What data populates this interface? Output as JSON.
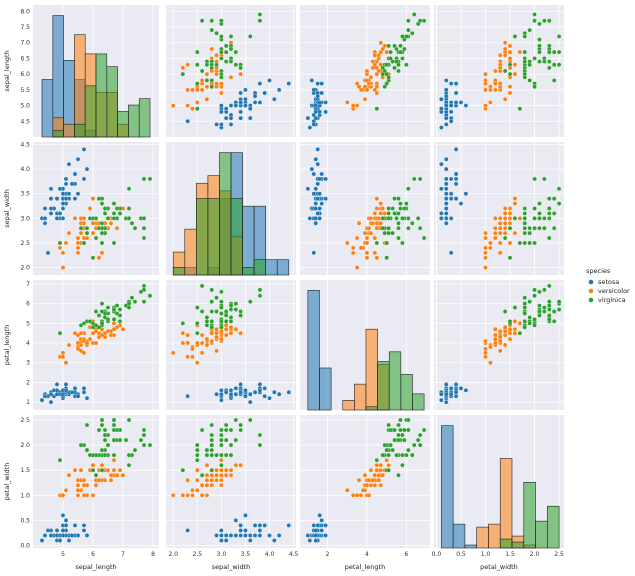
{
  "chart_data": {
    "type": "scatter",
    "kind": "pairplot",
    "variables": [
      "sepal_length",
      "sepal_width",
      "petal_length",
      "petal_width"
    ],
    "axis_labels": [
      "sepal_length",
      "sepal_width",
      "petal_length",
      "petal_width"
    ],
    "ticks": {
      "sepal_length": [
        "5",
        "6",
        "7",
        "8"
      ],
      "sepal_width": [
        "2.0",
        "2.5",
        "3.0",
        "3.5",
        "4.0",
        "4.5"
      ],
      "petal_length": [
        "2",
        "4",
        "6"
      ],
      "petal_width": [
        "0.0",
        "0.5",
        "1.0",
        "1.5",
        "2.0",
        "2.5"
      ],
      "sepal_length_y": [
        "4.5",
        "5.0",
        "5.5",
        "6.0",
        "6.5",
        "7.0",
        "7.5",
        "8.0"
      ],
      "petal_length_y": [
        "1",
        "2",
        "3",
        "4",
        "5",
        "6",
        "7"
      ]
    },
    "ranges": {
      "sepal_length": [
        4.0,
        8.2
      ],
      "sepal_width": [
        1.85,
        4.55
      ],
      "petal_length": [
        0.6,
        7.2
      ],
      "petal_width": [
        -0.05,
        2.6
      ]
    },
    "legend": {
      "title": "species",
      "placement": "center-right",
      "entries": [
        {
          "name": "setosa",
          "color": "#1f77b4"
        },
        {
          "name": "versicolor",
          "color": "#ff7f0e"
        },
        {
          "name": "virginica",
          "color": "#2ca02c"
        }
      ]
    },
    "style": {
      "background": "#eaeaf2",
      "grid": true,
      "grid_color": "#ffffff"
    },
    "series": [
      {
        "name": "setosa",
        "color": "#1f77b4",
        "points": [
          [
            5.1,
            3.5,
            1.4,
            0.2
          ],
          [
            4.9,
            3.0,
            1.4,
            0.2
          ],
          [
            4.7,
            3.2,
            1.3,
            0.2
          ],
          [
            4.6,
            3.1,
            1.5,
            0.2
          ],
          [
            5.0,
            3.6,
            1.4,
            0.2
          ],
          [
            5.4,
            3.9,
            1.7,
            0.4
          ],
          [
            4.6,
            3.4,
            1.4,
            0.3
          ],
          [
            5.0,
            3.4,
            1.5,
            0.2
          ],
          [
            4.4,
            2.9,
            1.4,
            0.2
          ],
          [
            4.9,
            3.1,
            1.5,
            0.1
          ],
          [
            5.4,
            3.7,
            1.5,
            0.2
          ],
          [
            4.8,
            3.4,
            1.6,
            0.2
          ],
          [
            4.8,
            3.0,
            1.4,
            0.1
          ],
          [
            4.3,
            3.0,
            1.1,
            0.1
          ],
          [
            5.8,
            4.0,
            1.2,
            0.2
          ],
          [
            5.7,
            4.4,
            1.5,
            0.4
          ],
          [
            5.4,
            3.9,
            1.3,
            0.4
          ],
          [
            5.1,
            3.5,
            1.4,
            0.3
          ],
          [
            5.7,
            3.8,
            1.7,
            0.3
          ],
          [
            5.1,
            3.8,
            1.5,
            0.3
          ],
          [
            5.4,
            3.4,
            1.7,
            0.2
          ],
          [
            5.1,
            3.7,
            1.5,
            0.4
          ],
          [
            4.6,
            3.6,
            1.0,
            0.2
          ],
          [
            5.1,
            3.3,
            1.7,
            0.5
          ],
          [
            4.8,
            3.4,
            1.9,
            0.2
          ],
          [
            5.0,
            3.0,
            1.6,
            0.2
          ],
          [
            5.0,
            3.4,
            1.6,
            0.4
          ],
          [
            5.2,
            3.5,
            1.5,
            0.2
          ],
          [
            5.2,
            3.4,
            1.4,
            0.2
          ],
          [
            4.7,
            3.2,
            1.6,
            0.2
          ],
          [
            4.8,
            3.1,
            1.6,
            0.2
          ],
          [
            5.4,
            3.4,
            1.5,
            0.4
          ],
          [
            5.2,
            4.1,
            1.5,
            0.1
          ],
          [
            5.5,
            4.2,
            1.4,
            0.2
          ],
          [
            4.9,
            3.1,
            1.5,
            0.2
          ],
          [
            5.0,
            3.2,
            1.2,
            0.2
          ],
          [
            5.5,
            3.5,
            1.3,
            0.2
          ],
          [
            4.9,
            3.6,
            1.4,
            0.1
          ],
          [
            4.4,
            3.0,
            1.3,
            0.2
          ],
          [
            5.1,
            3.4,
            1.5,
            0.2
          ],
          [
            5.0,
            3.5,
            1.3,
            0.3
          ],
          [
            4.5,
            2.3,
            1.3,
            0.3
          ],
          [
            4.4,
            3.2,
            1.3,
            0.2
          ],
          [
            5.0,
            3.5,
            1.6,
            0.6
          ],
          [
            5.1,
            3.8,
            1.9,
            0.4
          ],
          [
            4.8,
            3.0,
            1.4,
            0.3
          ],
          [
            5.1,
            3.8,
            1.6,
            0.2
          ],
          [
            4.6,
            3.2,
            1.4,
            0.2
          ],
          [
            5.3,
            3.7,
            1.5,
            0.2
          ],
          [
            5.0,
            3.3,
            1.4,
            0.2
          ]
        ]
      },
      {
        "name": "versicolor",
        "color": "#ff7f0e",
        "points": [
          [
            7.0,
            3.2,
            4.7,
            1.4
          ],
          [
            6.4,
            3.2,
            4.5,
            1.5
          ],
          [
            6.9,
            3.1,
            4.9,
            1.5
          ],
          [
            5.5,
            2.3,
            4.0,
            1.3
          ],
          [
            6.5,
            2.8,
            4.6,
            1.5
          ],
          [
            5.7,
            2.8,
            4.5,
            1.3
          ],
          [
            6.3,
            3.3,
            4.7,
            1.6
          ],
          [
            4.9,
            2.4,
            3.3,
            1.0
          ],
          [
            6.6,
            2.9,
            4.6,
            1.3
          ],
          [
            5.2,
            2.7,
            3.9,
            1.4
          ],
          [
            5.0,
            2.0,
            3.5,
            1.0
          ],
          [
            5.9,
            3.0,
            4.2,
            1.5
          ],
          [
            6.0,
            2.2,
            4.0,
            1.0
          ],
          [
            6.1,
            2.9,
            4.7,
            1.4
          ],
          [
            5.6,
            2.9,
            3.6,
            1.3
          ],
          [
            6.7,
            3.1,
            4.4,
            1.4
          ],
          [
            5.6,
            3.0,
            4.5,
            1.5
          ],
          [
            5.8,
            2.7,
            4.1,
            1.0
          ],
          [
            6.2,
            2.2,
            4.5,
            1.5
          ],
          [
            5.6,
            2.5,
            3.9,
            1.1
          ],
          [
            5.9,
            3.2,
            4.8,
            1.8
          ],
          [
            6.1,
            2.8,
            4.0,
            1.3
          ],
          [
            6.3,
            2.5,
            4.9,
            1.5
          ],
          [
            6.1,
            2.8,
            4.7,
            1.2
          ],
          [
            6.4,
            2.9,
            4.3,
            1.3
          ],
          [
            6.6,
            3.0,
            4.4,
            1.4
          ],
          [
            6.8,
            2.8,
            4.8,
            1.4
          ],
          [
            6.7,
            3.0,
            5.0,
            1.7
          ],
          [
            6.0,
            2.9,
            4.5,
            1.5
          ],
          [
            5.7,
            2.6,
            3.5,
            1.0
          ],
          [
            5.5,
            2.4,
            3.8,
            1.1
          ],
          [
            5.5,
            2.4,
            3.7,
            1.0
          ],
          [
            5.8,
            2.7,
            3.9,
            1.2
          ],
          [
            6.0,
            2.7,
            5.1,
            1.6
          ],
          [
            5.4,
            3.0,
            4.5,
            1.5
          ],
          [
            6.0,
            3.4,
            4.5,
            1.6
          ],
          [
            6.7,
            3.1,
            4.7,
            1.5
          ],
          [
            6.3,
            2.3,
            4.4,
            1.3
          ],
          [
            5.6,
            3.0,
            4.1,
            1.3
          ],
          [
            5.5,
            2.5,
            4.0,
            1.3
          ],
          [
            5.5,
            2.6,
            4.4,
            1.2
          ],
          [
            6.1,
            3.0,
            4.6,
            1.4
          ],
          [
            5.8,
            2.6,
            4.0,
            1.2
          ],
          [
            5.0,
            2.3,
            3.3,
            1.0
          ],
          [
            5.6,
            2.7,
            4.2,
            1.3
          ],
          [
            5.7,
            3.0,
            4.2,
            1.2
          ],
          [
            5.7,
            2.9,
            4.2,
            1.3
          ],
          [
            6.2,
            2.9,
            4.3,
            1.3
          ],
          [
            5.1,
            2.5,
            3.0,
            1.1
          ],
          [
            5.7,
            2.8,
            4.1,
            1.3
          ]
        ]
      },
      {
        "name": "virginica",
        "color": "#2ca02c",
        "points": [
          [
            6.3,
            3.3,
            6.0,
            2.5
          ],
          [
            5.8,
            2.7,
            5.1,
            1.9
          ],
          [
            7.1,
            3.0,
            5.9,
            2.1
          ],
          [
            6.3,
            2.9,
            5.6,
            1.8
          ],
          [
            6.5,
            3.0,
            5.8,
            2.2
          ],
          [
            7.6,
            3.0,
            6.6,
            2.1
          ],
          [
            4.9,
            2.5,
            4.5,
            1.7
          ],
          [
            7.3,
            2.9,
            6.3,
            1.8
          ],
          [
            6.7,
            2.5,
            5.8,
            1.8
          ],
          [
            7.2,
            3.6,
            6.1,
            2.5
          ],
          [
            6.5,
            3.2,
            5.1,
            2.0
          ],
          [
            6.4,
            2.7,
            5.3,
            1.9
          ],
          [
            6.8,
            3.0,
            5.5,
            2.1
          ],
          [
            5.7,
            2.5,
            5.0,
            2.0
          ],
          [
            5.8,
            2.8,
            5.1,
            2.4
          ],
          [
            6.4,
            3.2,
            5.3,
            2.3
          ],
          [
            6.5,
            3.0,
            5.5,
            1.8
          ],
          [
            7.7,
            3.8,
            6.7,
            2.2
          ],
          [
            7.7,
            2.6,
            6.9,
            2.3
          ],
          [
            6.0,
            2.2,
            5.0,
            1.5
          ],
          [
            6.9,
            3.2,
            5.7,
            2.3
          ],
          [
            5.6,
            2.8,
            4.9,
            2.0
          ],
          [
            7.7,
            2.8,
            6.7,
            2.0
          ],
          [
            6.3,
            2.7,
            4.9,
            1.8
          ],
          [
            6.7,
            3.3,
            5.7,
            2.1
          ],
          [
            7.2,
            3.2,
            6.0,
            1.8
          ],
          [
            6.2,
            2.8,
            4.8,
            1.8
          ],
          [
            6.1,
            3.0,
            4.9,
            1.8
          ],
          [
            6.4,
            2.8,
            5.6,
            2.1
          ],
          [
            7.2,
            3.0,
            5.8,
            1.6
          ],
          [
            7.4,
            2.8,
            6.1,
            1.9
          ],
          [
            7.9,
            3.8,
            6.4,
            2.0
          ],
          [
            6.4,
            2.8,
            5.6,
            2.2
          ],
          [
            6.3,
            2.8,
            5.1,
            1.5
          ],
          [
            6.1,
            2.6,
            5.6,
            1.4
          ],
          [
            7.7,
            3.0,
            6.1,
            2.3
          ],
          [
            6.3,
            3.4,
            5.6,
            2.4
          ],
          [
            6.4,
            3.1,
            5.5,
            1.8
          ],
          [
            6.0,
            3.0,
            4.8,
            1.8
          ],
          [
            6.9,
            3.1,
            5.4,
            2.1
          ],
          [
            6.7,
            3.1,
            5.6,
            2.4
          ],
          [
            6.9,
            3.1,
            5.1,
            2.3
          ],
          [
            5.8,
            2.7,
            5.1,
            1.9
          ],
          [
            6.8,
            3.2,
            5.9,
            2.3
          ],
          [
            6.7,
            3.3,
            5.7,
            2.5
          ],
          [
            6.7,
            3.0,
            5.2,
            2.3
          ],
          [
            6.3,
            2.5,
            5.0,
            1.9
          ],
          [
            6.5,
            3.0,
            5.2,
            2.0
          ],
          [
            6.2,
            3.4,
            5.4,
            2.3
          ],
          [
            5.9,
            3.0,
            5.1,
            1.8
          ]
        ]
      }
    ]
  }
}
